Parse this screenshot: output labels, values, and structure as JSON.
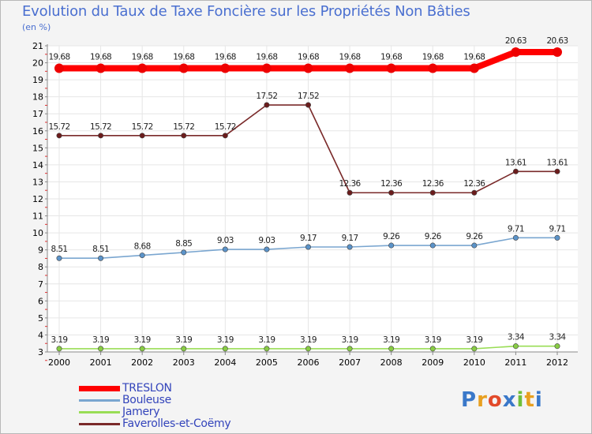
{
  "title": "Evolution du Taux de Taxe Foncière sur les Propriétés Non Bâties",
  "y_unit": "(en %)",
  "brand": "Proxiti",
  "chart_data": {
    "type": "line",
    "x": [
      "2000",
      "2001",
      "2002",
      "2003",
      "2004",
      "2005",
      "2006",
      "2007",
      "2008",
      "2009",
      "2010",
      "2011",
      "2012"
    ],
    "ylim": [
      3,
      21
    ],
    "yticks": [
      "3",
      "4",
      "5",
      "6",
      "7",
      "8",
      "9",
      "10",
      "11",
      "12",
      "13",
      "14",
      "15",
      "16",
      "17",
      "18",
      "19",
      "20",
      "21"
    ],
    "series": [
      {
        "name": "TRESLON",
        "color": "#ff0000",
        "marker": "#ee0000",
        "values": [
          19.68,
          19.68,
          19.68,
          19.68,
          19.68,
          19.68,
          19.68,
          19.68,
          19.68,
          19.68,
          19.68,
          20.63,
          20.63
        ],
        "labels": [
          "19.68",
          "19.68",
          "19.68",
          "19.68",
          "19.68",
          "19.68",
          "19.68",
          "19.68",
          "19.68",
          "19.68",
          "19.68",
          "20.63",
          "20.63"
        ]
      },
      {
        "name": "Bouleuse",
        "color": "#7aa6d0",
        "marker": "#5b93c9",
        "values": [
          8.51,
          8.51,
          8.68,
          8.85,
          9.03,
          9.03,
          9.17,
          9.17,
          9.26,
          9.26,
          9.26,
          9.71,
          9.71
        ],
        "labels": [
          "8.51",
          "8.51",
          "8.68",
          "8.85",
          "9.03",
          "9.03",
          "9.17",
          "9.17",
          "9.26",
          "9.26",
          "9.26",
          "9.71",
          "9.71"
        ]
      },
      {
        "name": "Jamery",
        "color": "#99dd55",
        "marker": "#88cc44",
        "values": [
          3.19,
          3.19,
          3.19,
          3.19,
          3.19,
          3.19,
          3.19,
          3.19,
          3.19,
          3.19,
          3.19,
          3.34,
          3.34
        ],
        "labels": [
          "3.19",
          "3.19",
          "3.19",
          "3.19",
          "3.19",
          "3.19",
          "3.19",
          "3.19",
          "3.19",
          "3.19",
          "3.19",
          "3.34",
          "3.34"
        ]
      },
      {
        "name": "Faverolles-et-Coëmy",
        "color": "#7a2a2a",
        "marker": "#6b1c1c",
        "values": [
          15.72,
          15.72,
          15.72,
          15.72,
          15.72,
          17.52,
          17.52,
          12.36,
          12.36,
          12.36,
          12.36,
          13.61,
          13.61
        ],
        "labels": [
          "15.72",
          "15.72",
          "15.72",
          "15.72",
          "15.72",
          "17.52",
          "17.52",
          "12.36",
          "12.36",
          "12.36",
          "12.36",
          "13.61",
          "13.61"
        ]
      }
    ]
  }
}
